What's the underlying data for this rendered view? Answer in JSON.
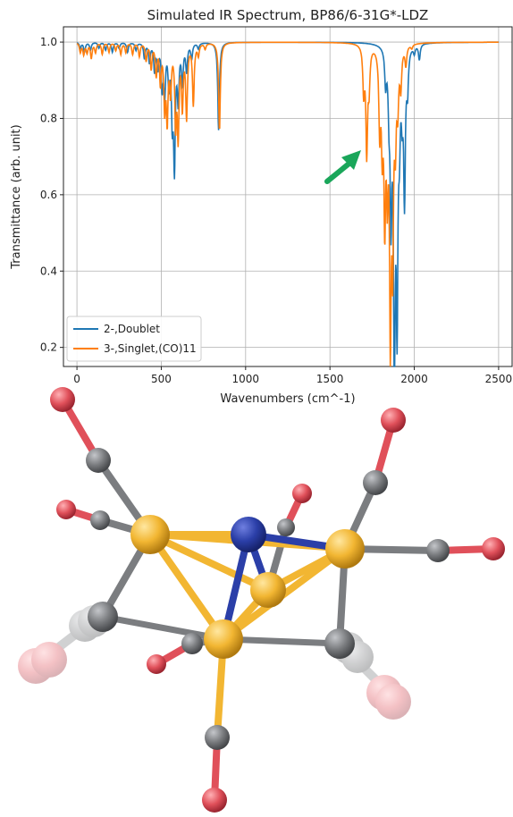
{
  "chart_data": {
    "type": "line",
    "title": "Simulated IR Spectrum, BP86/6-31G*-LDZ",
    "xlabel": "Wavenumbers (cm^-1)",
    "ylabel": "Transmittance (arb. unit)",
    "xlim": [
      -80,
      2580
    ],
    "ylim": [
      0.15,
      1.04
    ],
    "xticks": [
      "0",
      "500",
      "1000",
      "1500",
      "2000",
      "2500"
    ],
    "yticks": [
      "0.2",
      "0.4",
      "0.6",
      "0.8",
      "1.0"
    ],
    "grid": true,
    "legend_position": "bottom-left",
    "series": [
      {
        "name": "2-,Doublet",
        "color": "#1f77b4",
        "peaks": [
          [
            20,
            0.985
          ],
          [
            45,
            0.975
          ],
          [
            80,
            0.98
          ],
          [
            130,
            0.985
          ],
          [
            170,
            0.98
          ],
          [
            210,
            0.975
          ],
          [
            250,
            0.985
          ],
          [
            300,
            0.975
          ],
          [
            350,
            0.98
          ],
          [
            400,
            0.96
          ],
          [
            430,
            0.95
          ],
          [
            460,
            0.93
          ],
          [
            480,
            0.94
          ],
          [
            505,
            0.89
          ],
          [
            520,
            0.87
          ],
          [
            545,
            0.9
          ],
          [
            565,
            0.82
          ],
          [
            578,
            0.69
          ],
          [
            600,
            0.86
          ],
          [
            625,
            0.9
          ],
          [
            650,
            0.93
          ],
          [
            680,
            0.96
          ],
          [
            720,
            0.985
          ],
          [
            840,
            0.77
          ],
          [
            1830,
            0.91
          ],
          [
            1850,
            0.87
          ],
          [
            1862,
            0.59
          ],
          [
            1882,
            0.16
          ],
          [
            1898,
            0.34
          ],
          [
            1912,
            0.82
          ],
          [
            1928,
            0.87
          ],
          [
            1942,
            0.61
          ],
          [
            1960,
            0.9
          ],
          [
            2000,
            0.98
          ],
          [
            2030,
            0.96
          ]
        ]
      },
      {
        "name": "3-,Singlet,(CO)11",
        "color": "#ff7f0e",
        "peaks": [
          [
            20,
            0.975
          ],
          [
            40,
            0.97
          ],
          [
            60,
            0.975
          ],
          [
            85,
            0.96
          ],
          [
            110,
            0.975
          ],
          [
            150,
            0.97
          ],
          [
            190,
            0.975
          ],
          [
            230,
            0.98
          ],
          [
            260,
            0.97
          ],
          [
            290,
            0.975
          ],
          [
            330,
            0.97
          ],
          [
            370,
            0.965
          ],
          [
            410,
            0.955
          ],
          [
            440,
            0.935
          ],
          [
            470,
            0.92
          ],
          [
            495,
            0.9
          ],
          [
            520,
            0.84
          ],
          [
            535,
            0.81
          ],
          [
            555,
            0.88
          ],
          [
            585,
            0.8
          ],
          [
            600,
            0.77
          ],
          [
            625,
            0.84
          ],
          [
            650,
            0.81
          ],
          [
            690,
            0.84
          ],
          [
            720,
            0.97
          ],
          [
            760,
            0.985
          ],
          [
            845,
            0.77
          ],
          [
            1700,
            0.88
          ],
          [
            1718,
            0.72
          ],
          [
            1732,
            0.9
          ],
          [
            1795,
            0.79
          ],
          [
            1810,
            0.77
          ],
          [
            1825,
            0.58
          ],
          [
            1840,
            0.69
          ],
          [
            1858,
            0.28
          ],
          [
            1872,
            0.5
          ],
          [
            1888,
            0.79
          ],
          [
            1902,
            0.86
          ],
          [
            1920,
            0.9
          ],
          [
            1950,
            0.95
          ],
          [
            1985,
            0.99
          ]
        ]
      }
    ]
  },
  "molecule": {
    "metal_color": "#f2b632",
    "nitrogen_color": "#2b3fa8",
    "carbon_color": "#7b7d80",
    "oxygen_color": "#e0505a"
  }
}
